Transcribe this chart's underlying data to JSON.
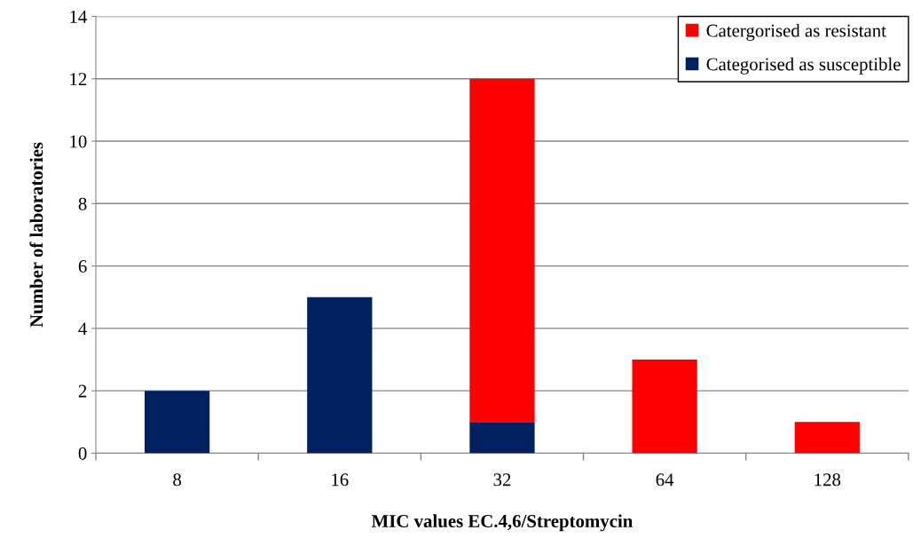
{
  "chart_data": {
    "type": "bar",
    "stacked": true,
    "xlabel": "MIC values EC.4,6/Streptomycin",
    "ylabel": "Number of laboratories",
    "categories": [
      "8",
      "16",
      "32",
      "64",
      "128"
    ],
    "series": [
      {
        "name": "Categorised as susceptible",
        "color": "#002060",
        "values": [
          2,
          5,
          1,
          0,
          0
        ]
      },
      {
        "name": "Catergorised as resistant",
        "color": "#ff0000",
        "values": [
          0,
          0,
          11,
          3,
          1
        ]
      }
    ],
    "ylim": [
      0,
      14
    ],
    "yticks": [
      0,
      2,
      4,
      6,
      8,
      10,
      12,
      14
    ],
    "grid": "y",
    "legend": "top right"
  }
}
